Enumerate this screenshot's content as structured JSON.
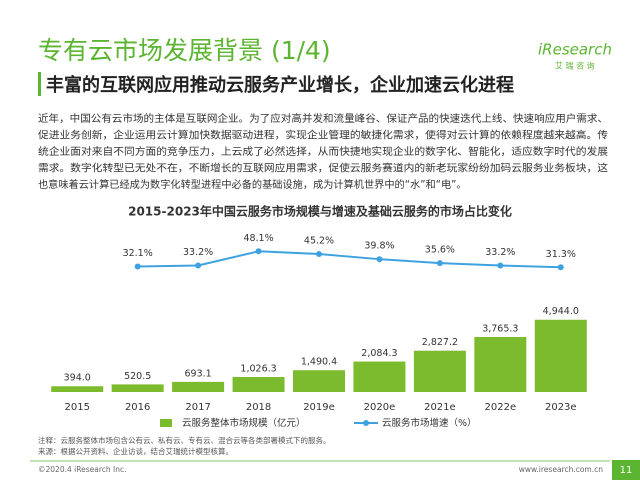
{
  "header": {
    "title": "专有云市场发展背景 (1/4)",
    "subtitle": "丰富的互联网应用推动云服务产业增长，企业加速云化进程",
    "logo": "iResearch",
    "logo_sub": "艾 瑞 咨 询"
  },
  "paragraph": [
    "近年，中国公有云市场的主体是互联网企业。为了应对高并发和流量峰谷、保证产品的快速迭代上线、快速响应用户需求、",
    "促进业务创新，企业运用云计算加快数据驱动进程，实现企业管理的敏捷化需求，使得对云计算的依赖程度越来越高。传",
    "统企业面对来自不同方面的竞争压力，上云成了必然选择，从而快捷地实现企业的数字化、智能化，适应数字时代的发展",
    "需求。数字化转型已无处不在，不断增长的互联网应用需求，促使云服务赛道内的新老玩家纷纷加码云服务业务板块，这",
    "也意味着云计算已经成为数字化转型进程中必备的基础设施，成为计算机世界中的“水”和“电”。"
  ],
  "chart_data": {
    "type": "bar",
    "title": "2015-2023年中国云服务市场规模与增速及基础云服务的市场占比变化",
    "categories": [
      "2015",
      "2016",
      "2017",
      "2018",
      "2019e",
      "2020e",
      "2021e",
      "2022e",
      "2023e"
    ],
    "ylim": [
      0,
      10400
    ],
    "y2lim": [
      -100,
      60
    ],
    "legend": "bottom",
    "series": [
      {
        "name": "云服务整体市场规模（亿元）",
        "type": "bar",
        "color": "#7dbb2e",
        "values": [
          394.0,
          520.5,
          693.1,
          1026.3,
          1490.4,
          2084.3,
          2827.2,
          3765.3,
          4944.0
        ],
        "value_labels": [
          "394.0",
          "520.5",
          "693.1",
          "1,026.3",
          "1,490.4",
          "2,084.3",
          "2,827.2",
          "3,765.3",
          "4,944.0"
        ]
      },
      {
        "name": "云服务市场增速（%）",
        "type": "line",
        "axis": "y2",
        "color": "#3fa2e0",
        "values": [
          null,
          32.1,
          33.2,
          48.1,
          45.2,
          39.8,
          35.6,
          33.2,
          31.3
        ],
        "value_labels": [
          null,
          "32.1%",
          "33.2%",
          "48.1%",
          "45.2%",
          "39.8%",
          "35.6%",
          "33.2%",
          "31.3%"
        ]
      }
    ]
  },
  "notes": [
    "注释：云服务整体市场包含公有云、私有云、专有云、混合云等各类部署模式下的服务。",
    "来源：根据公开资料、企业访谈，结合艾瑞统计模型核算。"
  ],
  "footer": {
    "copyright": "©2020.4 iResearch Inc.",
    "url": "www.iresearch.com.cn",
    "page": "11"
  }
}
